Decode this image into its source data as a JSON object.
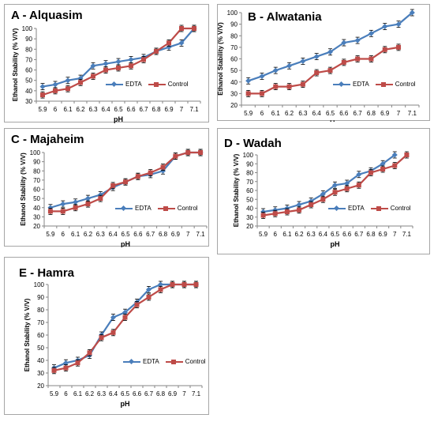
{
  "colors": {
    "edta": "#4a7ebb",
    "control": "#be4b48"
  },
  "chart_data": [
    {
      "type": "line",
      "title": "A - Alquasim",
      "xlabel": "pH",
      "ylabel": "Ethanol Stability (% V/V)",
      "x": [
        "5.9",
        "6",
        "6.1",
        "6.2",
        "6.3",
        "6.4",
        "6.5",
        "6.6",
        "6.7",
        "6.8",
        "6.9",
        "7",
        "7.1"
      ],
      "yticks": [
        30,
        40,
        50,
        60,
        70,
        80,
        90,
        100
      ],
      "ylim": [
        30,
        100
      ],
      "legend_position": "bottom-right",
      "series": [
        {
          "name": "EDTA",
          "values": [
            44,
            46,
            50,
            52,
            64,
            66,
            68,
            70,
            72,
            78,
            82,
            86,
            100
          ]
        },
        {
          "name": "Control",
          "values": [
            36,
            40,
            42,
            48,
            54,
            60,
            62,
            64,
            70,
            78,
            86,
            100,
            100
          ]
        }
      ]
    },
    {
      "type": "line",
      "title": "B - Alwatania",
      "xlabel": "pH",
      "ylabel": "Ethanol Stability (% V/V)",
      "x": [
        "5.9",
        "6",
        "6.1",
        "6.2",
        "6.3",
        "6.4",
        "6.5",
        "6.6",
        "6.7",
        "6.8",
        "6.9",
        "7",
        "7.1"
      ],
      "yticks": [
        20,
        30,
        40,
        50,
        60,
        70,
        80,
        90,
        100
      ],
      "ylim": [
        20,
        100
      ],
      "legend_position": "bottom-right",
      "series": [
        {
          "name": "EDTA",
          "values": [
            41,
            45,
            50,
            54,
            58,
            62,
            66,
            74,
            76,
            82,
            88,
            90,
            100
          ]
        },
        {
          "name": "Control",
          "values": [
            30,
            30,
            36,
            36,
            38,
            48,
            50,
            57,
            60,
            60,
            68,
            70,
            null
          ]
        }
      ]
    },
    {
      "type": "line",
      "title": "C - Majaheim",
      "xlabel": "pH",
      "ylabel": "Ethanol Stability (% V/V)",
      "x": [
        "5.9",
        "6",
        "6.1",
        "6.2",
        "6.3",
        "6.4",
        "6.5",
        "6.6",
        "6.7",
        "6.8",
        "6.9",
        "7",
        "7.1"
      ],
      "yticks": [
        20,
        30,
        40,
        50,
        60,
        70,
        80,
        90,
        100
      ],
      "ylim": [
        20,
        100
      ],
      "legend_position": "bottom-right",
      "series": [
        {
          "name": "EDTA",
          "values": [
            40,
            44,
            46,
            50,
            54,
            62,
            68,
            74,
            76,
            80,
            96,
            100,
            100
          ]
        },
        {
          "name": "Control",
          "values": [
            36,
            36,
            40,
            44,
            50,
            64,
            68,
            74,
            78,
            84,
            96,
            100,
            100
          ]
        }
      ]
    },
    {
      "type": "line",
      "title": "D - Wadah",
      "xlabel": "pH",
      "ylabel": "Ethanol Stability (% V/V)",
      "x": [
        "5.9",
        "6",
        "6.1",
        "6.2",
        "6.3",
        "6.4",
        "6.5",
        "6.6",
        "6.7",
        "6.8",
        "6.9",
        "7",
        "7.1"
      ],
      "yticks": [
        20,
        30,
        40,
        50,
        60,
        70,
        80,
        90,
        100
      ],
      "ylim": [
        20,
        100
      ],
      "legend_position": "bottom-right",
      "series": [
        {
          "name": "EDTA",
          "values": [
            36,
            38,
            40,
            44,
            48,
            56,
            66,
            68,
            78,
            82,
            90,
            100,
            null
          ]
        },
        {
          "name": "Control",
          "values": [
            32,
            34,
            36,
            38,
            44,
            50,
            58,
            62,
            66,
            80,
            84,
            88,
            100
          ]
        }
      ]
    },
    {
      "type": "line",
      "title": "E - Hamra",
      "xlabel": "pH",
      "ylabel": "Ethanol Stability (% V/V)",
      "x": [
        "5.9",
        "6",
        "6.1",
        "6.2",
        "6.3",
        "6.4",
        "6.5",
        "6.6",
        "6.7",
        "6.8",
        "6.9",
        "7",
        "7.1"
      ],
      "yticks": [
        20,
        30,
        40,
        50,
        60,
        70,
        80,
        90,
        100
      ],
      "ylim": [
        20,
        100
      ],
      "legend_position": "bottom-right",
      "series": [
        {
          "name": "EDTA",
          "values": [
            34,
            38,
            40,
            44,
            60,
            74,
            78,
            86,
            96,
            100,
            100,
            100,
            100
          ]
        },
        {
          "name": "Control",
          "values": [
            32,
            34,
            38,
            46,
            58,
            62,
            74,
            84,
            90,
            96,
            100,
            100,
            100
          ]
        }
      ]
    }
  ]
}
